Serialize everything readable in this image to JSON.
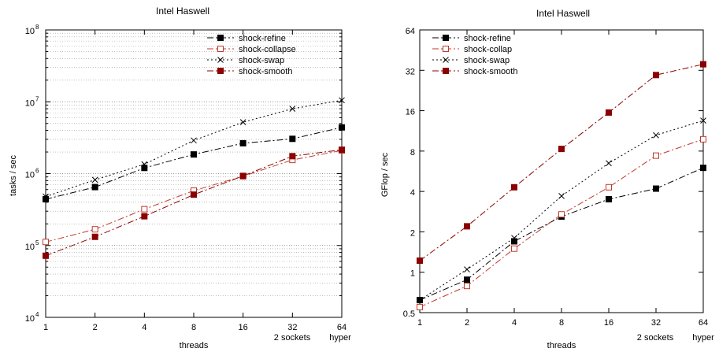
{
  "chart_data": [
    {
      "type": "line",
      "title": "Intel Haswell",
      "xlabel": "threads",
      "ylabel": "tasks / sec",
      "yscale": "log",
      "xscale": "log2",
      "x": [
        1,
        2,
        4,
        8,
        16,
        32,
        64
      ],
      "x_tick_labels": [
        "1",
        "2",
        "4",
        "8",
        "16",
        "32",
        "64"
      ],
      "x_extra_labels": [
        "2 sockets",
        "hyper"
      ],
      "y_ticks": [
        10000,
        100000,
        1000000,
        10000000,
        100000000
      ],
      "y_tick_labels": [
        {
          "base": "10",
          "exp": "4"
        },
        {
          "base": "10",
          "exp": "5"
        },
        {
          "base": "10",
          "exp": "6"
        },
        {
          "base": "10",
          "exp": "7"
        },
        {
          "base": "10",
          "exp": "8"
        }
      ],
      "ylim": [
        10000,
        100000000
      ],
      "grid": "horizontal-major-minor",
      "legend_position": "top-right",
      "series": [
        {
          "name": "shock-refine",
          "color": "#000000",
          "dash": "8,3,2,3",
          "marker": "filled-square",
          "values": [
            440000,
            650000,
            1200000,
            1850000,
            2650000,
            3050000,
            4400000
          ]
        },
        {
          "name": "shock-collapse",
          "color": "#c0392b",
          "dash": "8,3,2,3",
          "marker": "open-square",
          "values": [
            112000,
            168000,
            320000,
            580000,
            920000,
            1550000,
            2100000
          ]
        },
        {
          "name": "shock-swap",
          "color": "#000000",
          "dash": "2,3",
          "marker": "cross",
          "values": [
            480000,
            820000,
            1350000,
            2900000,
            5200000,
            8000000,
            10500000
          ]
        },
        {
          "name": "shock-smooth",
          "color": "#8b0000",
          "dash": "8,3,2,3",
          "marker": "filled-square",
          "values": [
            72000,
            132000,
            255000,
            510000,
            930000,
            1750000,
            2150000
          ]
        }
      ]
    },
    {
      "type": "line",
      "title": "Intel Haswell",
      "xlabel": "threads",
      "ylabel": "GFlop / sec",
      "yscale": "log2",
      "xscale": "log2",
      "x": [
        1,
        2,
        4,
        8,
        16,
        32,
        64
      ],
      "x_tick_labels": [
        "1",
        "2",
        "4",
        "8",
        "16",
        "32",
        "64"
      ],
      "x_extra_labels": [
        "2 sockets",
        "hyper"
      ],
      "y_ticks": [
        0.5,
        1,
        2,
        4,
        8,
        16,
        32,
        64
      ],
      "y_tick_labels": [
        "0.5",
        "1",
        "2",
        "4",
        "8",
        "16",
        "32",
        "64"
      ],
      "ylim": [
        0.5,
        64
      ],
      "grid": "none",
      "legend_position": "top-left",
      "series": [
        {
          "name": "shock-refine",
          "color": "#000000",
          "dash": "8,3,2,3",
          "marker": "filled-square",
          "values": [
            0.62,
            0.88,
            1.7,
            2.6,
            3.5,
            4.2,
            6.0
          ]
        },
        {
          "name": "shock-collap",
          "color": "#c0392b",
          "dash": "8,3,2,3",
          "marker": "open-square",
          "values": [
            0.55,
            0.79,
            1.5,
            2.7,
            4.3,
            7.4,
            9.8
          ]
        },
        {
          "name": "shock-swap",
          "color": "#000000",
          "dash": "2,3",
          "marker": "cross",
          "values": [
            0.62,
            1.05,
            1.8,
            3.7,
            6.5,
            10.5,
            13.5
          ]
        },
        {
          "name": "shock-smooth",
          "color": "#8b0000",
          "dash": "8,3,2,3",
          "marker": "filled-square",
          "values": [
            1.22,
            2.2,
            4.3,
            8.3,
            15.5,
            29.5,
            35.5
          ]
        }
      ]
    }
  ]
}
